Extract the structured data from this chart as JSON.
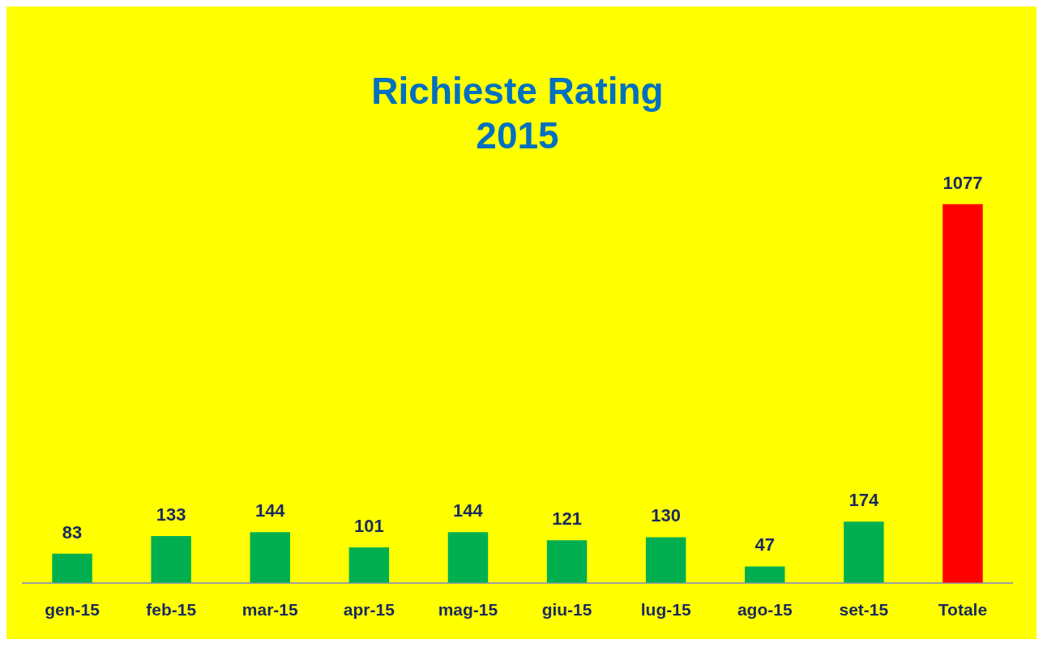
{
  "chart_data": {
    "type": "bar",
    "title": "Richieste Rating\n2015",
    "categories": [
      "gen-15",
      "feb-15",
      "mar-15",
      "apr-15",
      "mag-15",
      "giu-15",
      "lug-15",
      "ago-15",
      "set-15",
      "Totale"
    ],
    "values": [
      83,
      133,
      144,
      101,
      144,
      121,
      130,
      47,
      174,
      1077
    ],
    "colors": [
      "#00b050",
      "#00b050",
      "#00b050",
      "#00b050",
      "#00b050",
      "#00b050",
      "#00b050",
      "#00b050",
      "#00b050",
      "#ff0000"
    ],
    "data_labels": true,
    "grid": false,
    "legend": false
  }
}
